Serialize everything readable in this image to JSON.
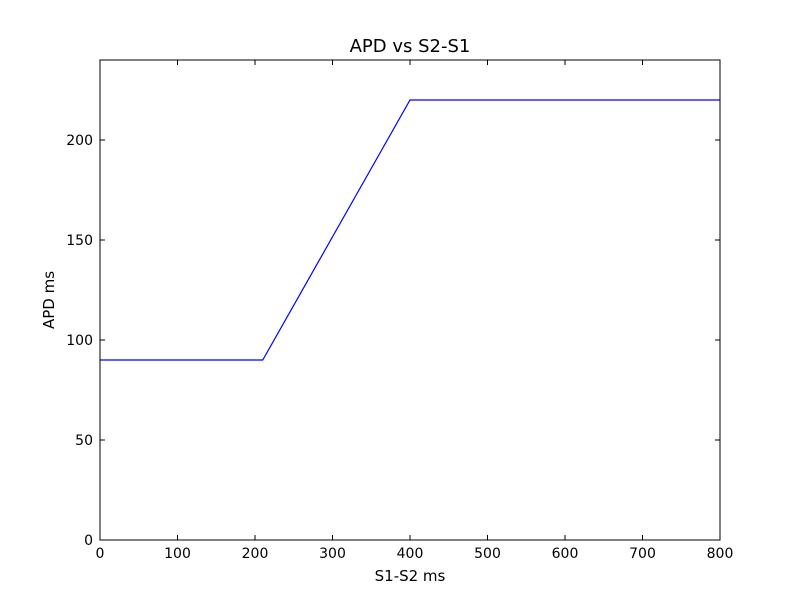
{
  "chart_data": {
    "type": "line",
    "title": "APD vs S2-S1",
    "xlabel": "S1-S2 ms",
    "ylabel": "APD ms",
    "xlim": [
      0,
      800
    ],
    "ylim": [
      0,
      240
    ],
    "xticks": [
      0,
      100,
      200,
      300,
      400,
      500,
      600,
      700,
      800
    ],
    "yticks": [
      0,
      50,
      100,
      150,
      200
    ],
    "grid": false,
    "series": [
      {
        "color": "#0000ff",
        "x": [
          0,
          210,
          400,
          800
        ],
        "y": [
          90,
          90,
          220,
          220
        ]
      }
    ]
  }
}
